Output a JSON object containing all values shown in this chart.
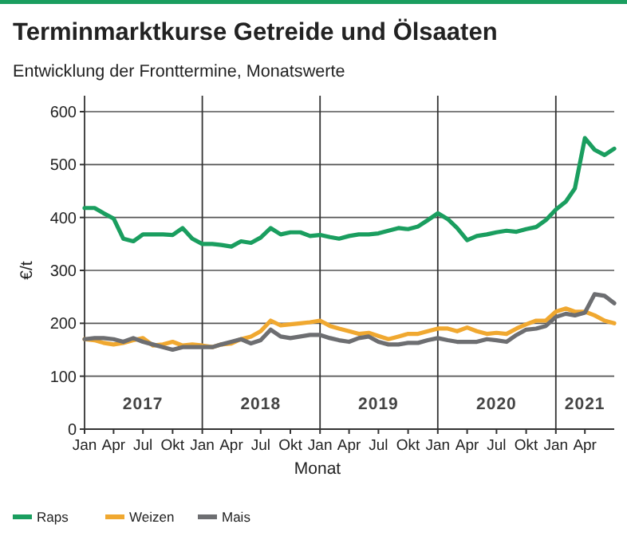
{
  "chart_data": {
    "type": "line",
    "title": "Terminmarktkurse Getreide und Ölsaaten",
    "subtitle": "Entwicklung der Fronttermine, Monatswerte",
    "xlabel": "Monat",
    "ylabel": "€/t",
    "x": [
      "2017-01",
      "2017-02",
      "2017-03",
      "2017-04",
      "2017-05",
      "2017-06",
      "2017-07",
      "2017-08",
      "2017-09",
      "2017-10",
      "2017-11",
      "2017-12",
      "2018-01",
      "2018-02",
      "2018-03",
      "2018-04",
      "2018-05",
      "2018-06",
      "2018-07",
      "2018-08",
      "2018-09",
      "2018-10",
      "2018-11",
      "2018-12",
      "2019-01",
      "2019-02",
      "2019-03",
      "2019-04",
      "2019-05",
      "2019-06",
      "2019-07",
      "2019-08",
      "2019-09",
      "2019-10",
      "2019-11",
      "2019-12",
      "2020-01",
      "2020-02",
      "2020-03",
      "2020-04",
      "2020-05",
      "2020-06",
      "2020-07",
      "2020-08",
      "2020-09",
      "2020-10",
      "2020-11",
      "2020-12",
      "2021-01",
      "2021-02",
      "2021-03",
      "2021-04",
      "2021-05",
      "2021-06",
      "2021-07"
    ],
    "series": [
      {
        "name": "Raps",
        "color": "#1a9e5f",
        "values": [
          418,
          418,
          408,
          398,
          360,
          355,
          368,
          368,
          368,
          367,
          380,
          360,
          350,
          350,
          348,
          345,
          355,
          352,
          362,
          380,
          368,
          372,
          372,
          365,
          367,
          363,
          360,
          365,
          368,
          368,
          370,
          375,
          380,
          378,
          383,
          395,
          408,
          397,
          380,
          357,
          365,
          368,
          372,
          375,
          373,
          378,
          382,
          395,
          415,
          430,
          455,
          550,
          528,
          518,
          530
        ]
      },
      {
        "name": "Weizen",
        "color": "#f0a830",
        "values": [
          170,
          168,
          163,
          160,
          163,
          168,
          172,
          158,
          160,
          165,
          158,
          160,
          158,
          155,
          160,
          162,
          170,
          175,
          185,
          205,
          196,
          198,
          200,
          202,
          205,
          195,
          190,
          185,
          180,
          182,
          176,
          170,
          175,
          180,
          180,
          185,
          190,
          190,
          185,
          192,
          185,
          180,
          182,
          180,
          190,
          198,
          205,
          205,
          222,
          228,
          222,
          222,
          215,
          205,
          200
        ]
      },
      {
        "name": "Mais",
        "color": "#6d6e71",
        "values": [
          170,
          172,
          172,
          170,
          165,
          172,
          165,
          160,
          155,
          150,
          155,
          155,
          155,
          155,
          160,
          165,
          170,
          162,
          168,
          188,
          175,
          172,
          175,
          178,
          178,
          172,
          168,
          165,
          172,
          175,
          165,
          160,
          160,
          163,
          163,
          168,
          172,
          168,
          165,
          165,
          165,
          170,
          168,
          165,
          178,
          188,
          190,
          195,
          212,
          218,
          215,
          220,
          255,
          252,
          238
        ]
      }
    ],
    "xlim": [
      "2017-01",
      "2021-07"
    ],
    "xticks": [
      {
        "value": "2017-01",
        "label": "Jan"
      },
      {
        "value": "2017-04",
        "label": "Apr"
      },
      {
        "value": "2017-07",
        "label": "Jul"
      },
      {
        "value": "2017-10",
        "label": "Okt"
      },
      {
        "value": "2018-01",
        "label": "Jan"
      },
      {
        "value": "2018-04",
        "label": "Apr"
      },
      {
        "value": "2018-07",
        "label": "Jul"
      },
      {
        "value": "2018-10",
        "label": "Okt"
      },
      {
        "value": "2019-01",
        "label": "Jan"
      },
      {
        "value": "2019-04",
        "label": "Apr"
      },
      {
        "value": "2019-07",
        "label": "Jul"
      },
      {
        "value": "2019-10",
        "label": "Okt"
      },
      {
        "value": "2020-01",
        "label": "Jan"
      },
      {
        "value": "2020-04",
        "label": "Apr"
      },
      {
        "value": "2020-07",
        "label": "Jul"
      },
      {
        "value": "2020-10",
        "label": "Okt"
      },
      {
        "value": "2021-01",
        "label": "Jan"
      },
      {
        "value": "2021-04",
        "label": "Apr"
      }
    ],
    "ylim": [
      0,
      600
    ],
    "yticks": [
      0,
      100,
      200,
      300,
      400,
      500,
      600
    ],
    "grid": "y",
    "legend": "bottom",
    "line_style": "solid",
    "marker": "none",
    "ref_lines": [
      {
        "axis": "x",
        "value": "2018-01",
        "color": "#333333"
      },
      {
        "axis": "x",
        "value": "2019-01",
        "color": "#333333"
      },
      {
        "axis": "x",
        "value": "2020-01",
        "color": "#333333"
      },
      {
        "axis": "x",
        "value": "2021-01",
        "color": "#333333"
      }
    ],
    "x2lim": [
      "2017-01",
      "2021-07"
    ],
    "x2ticks": [
      {
        "value": "2017-07",
        "label": "2017"
      },
      {
        "value": "2018-07",
        "label": "2018"
      },
      {
        "value": "2019-07",
        "label": "2019"
      },
      {
        "value": "2020-07",
        "label": "2020"
      },
      {
        "value": "2021-04",
        "label": "2021"
      }
    ]
  }
}
